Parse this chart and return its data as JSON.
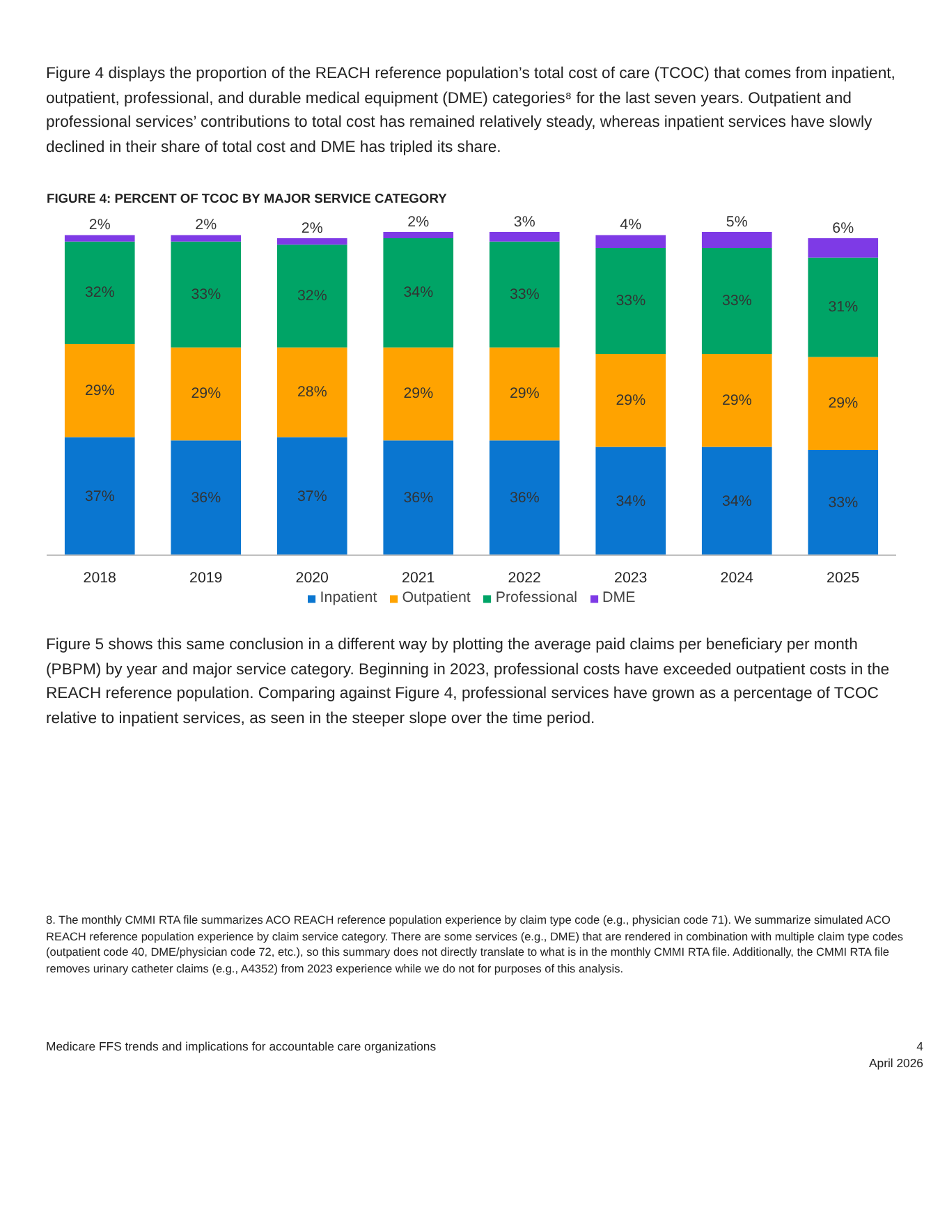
{
  "chart_data": {
    "type": "bar",
    "title": "FIGURE 4: PERCENT OF TCOC BY MAJOR SERVICE CATEGORY",
    "categories": [
      "2018",
      "2019",
      "2020",
      "2021",
      "2022",
      "2023",
      "2024",
      "2025"
    ],
    "stacked": true,
    "grid": false,
    "legend": "bottom",
    "series": [
      {
        "name": "Inpatient",
        "color": "#0a76d0",
        "values": [
          37,
          36,
          37,
          36,
          36,
          34,
          34,
          33
        ],
        "value_labels": [
          "37%",
          "36%",
          "37%",
          "36%",
          "36%",
          "34%",
          "34%",
          "33%"
        ]
      },
      {
        "name": "Outpatient",
        "color": "#ffa300",
        "values": [
          29,
          29,
          28,
          29,
          29,
          29,
          29,
          29
        ],
        "value_labels": [
          "29%",
          "29%",
          "28%",
          "29%",
          "29%",
          "29%",
          "29%",
          "29%"
        ]
      },
      {
        "name": "Professional",
        "color": "#00a466",
        "values": [
          32,
          33,
          32,
          34,
          33,
          33,
          33,
          31
        ],
        "value_labels": [
          "32%",
          "33%",
          "32%",
          "34%",
          "33%",
          "33%",
          "33%",
          "31%"
        ]
      },
      {
        "name": "DME",
        "color": "#7e3ae6",
        "values": [
          2,
          2,
          2,
          2,
          3,
          4,
          5,
          6
        ],
        "value_labels": [
          "2%",
          "2%",
          "2%",
          "2%",
          "3%",
          "4%",
          "5%",
          "6%"
        ]
      }
    ],
    "annotations": [
      "Figure 4 displays the proportion of the REACH reference population’s total cost of care (TCOC) that comes from inpatient, outpatient, professional, and durable medical equipment (DME) categories⁸ for the last seven years. Outpatient and professional services’ contributions to total cost has remained relatively steady, whereas inpatient services have slowly declined in their share of total cost and DME has tripled its share.",
      "Figure 5 shows this same conclusion in a different way by plotting the average paid claims per beneficiary per month (PBPM) by year and major service category. Beginning in 2023, professional costs have exceeded outpatient costs in the REACH reference population. Comparing against Figure 4, professional services have grown as a percentage of TCOC relative to inpatient services, as seen in the steeper slope over the time period.",
      "8. The monthly CMMI RTA file summarizes ACO REACH reference population experience by claim type code (e.g., physician code 71). We summarize simulated ACO REACH reference population experience by claim service category. There are some services (e.g., DME) that are rendered in combination with multiple claim type codes (outpatient code 40, DME/physician code 72, etc.), so this summary does not directly translate to what is in the monthly CMMI RTA file. Additionally, the CMMI RTA file removes urinary catheter claims (e.g., A4352) from 2023 experience while we do not for purposes of this analysis.",
      "Medicare FFS trends and implications for accountable care organizations",
      "4",
      "April 2026"
    ]
  }
}
